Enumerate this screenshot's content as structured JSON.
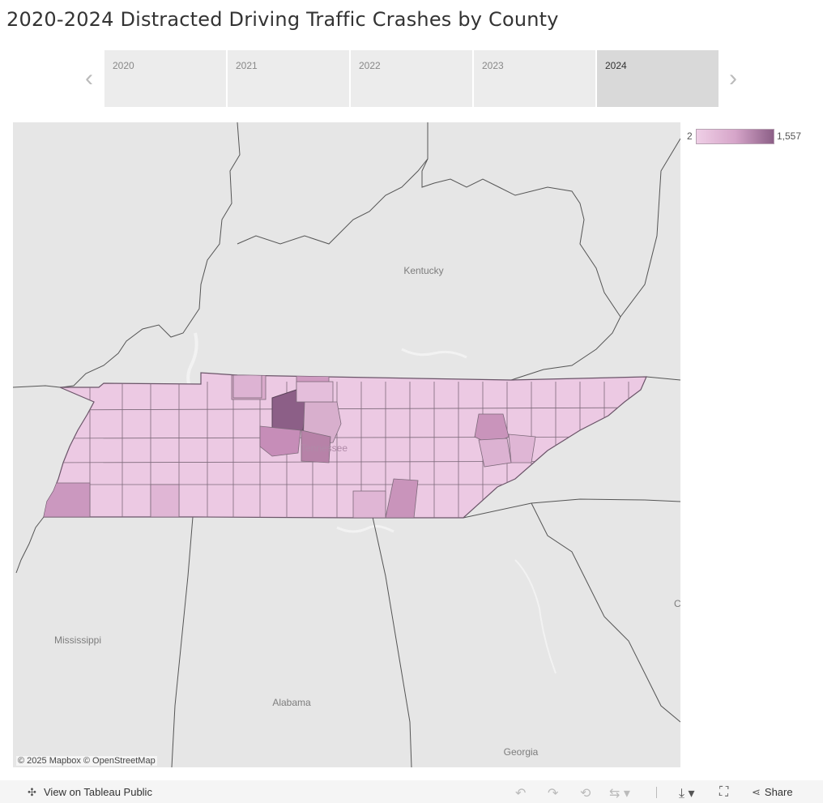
{
  "title": "2020-2024 Distracted Driving Traffic Crashes by County",
  "year_tabs": [
    "2020",
    "2021",
    "2022",
    "2023",
    "2024"
  ],
  "selected_year": "2024",
  "legend": {
    "min": "2",
    "max": "1,557",
    "color_low": "#efcfe6",
    "color_high": "#8c5f87"
  },
  "map_labels": {
    "kentucky": "Kentucky",
    "tennessee": "Tennessee",
    "mississippi": "Mississippi",
    "alabama": "Alabama",
    "georgia": "Georgia",
    "edge": "C"
  },
  "attribution": "© 2025 Mapbox  © OpenStreetMap",
  "footer": {
    "view_label": "View on Tableau Public",
    "share_label": "Share"
  },
  "icons": [
    "chevron-left-icon",
    "chevron-right-icon",
    "tableau-logo-icon",
    "undo-icon",
    "redo-icon",
    "revert-icon",
    "refresh-icon",
    "download-icon",
    "fullscreen-icon",
    "share-icon"
  ]
}
